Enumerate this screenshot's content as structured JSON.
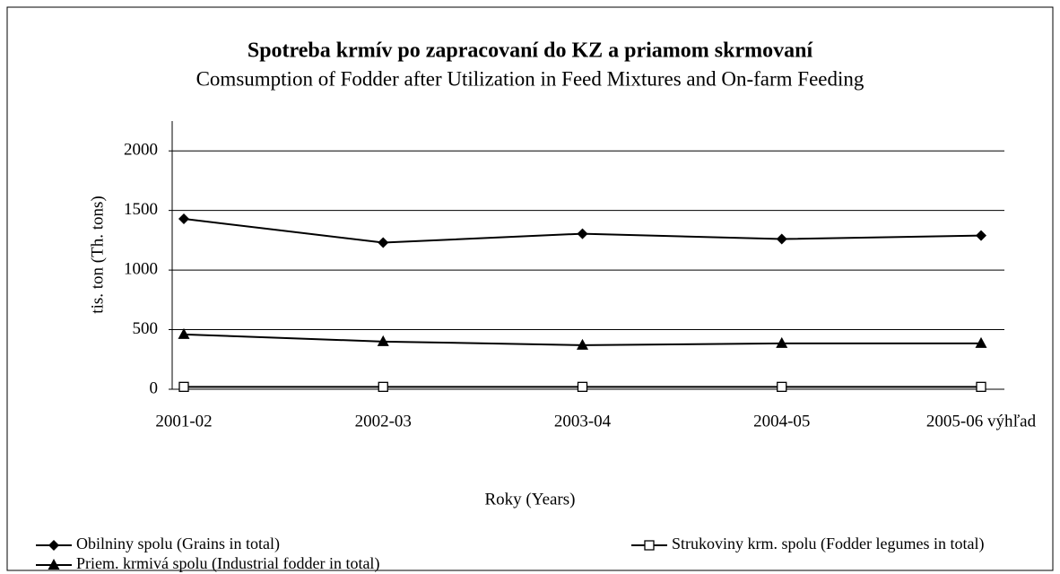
{
  "chart_data": {
    "type": "line",
    "title": "Spotreba krmív po zapracovaní do KZ a priamom skrmovaní",
    "subtitle": "Comsumption of Fodder after Utilization in Feed Mixtures and On-farm Feeding",
    "x_label": "Roky (Years)",
    "y_label": "tis. ton (Th. tons)",
    "categories": [
      "2001-02",
      "2002-03",
      "2003-04",
      "2004-05",
      "2005-06 výhľad"
    ],
    "series": [
      {
        "name": "Obilniny spolu (Grains in total)",
        "color": "#000000",
        "marker": "diamond",
        "values": [
          1430,
          1230,
          1305,
          1260,
          1290
        ]
      },
      {
        "name": "Strukoviny krm. spolu (Fodder legumes in total)",
        "color": "#000000",
        "marker": "square-open",
        "values": [
          20,
          20,
          20,
          20,
          20
        ]
      },
      {
        "name": "Priem. krmivá spolu (Industrial fodder in total)",
        "color": "#000000",
        "marker": "triangle",
        "values": [
          460,
          400,
          370,
          385,
          385
        ]
      }
    ],
    "ylim": [
      0,
      2250
    ],
    "yticks": [
      0,
      500,
      1000,
      1500,
      2000
    ],
    "grid": true,
    "legend": "bottom"
  }
}
